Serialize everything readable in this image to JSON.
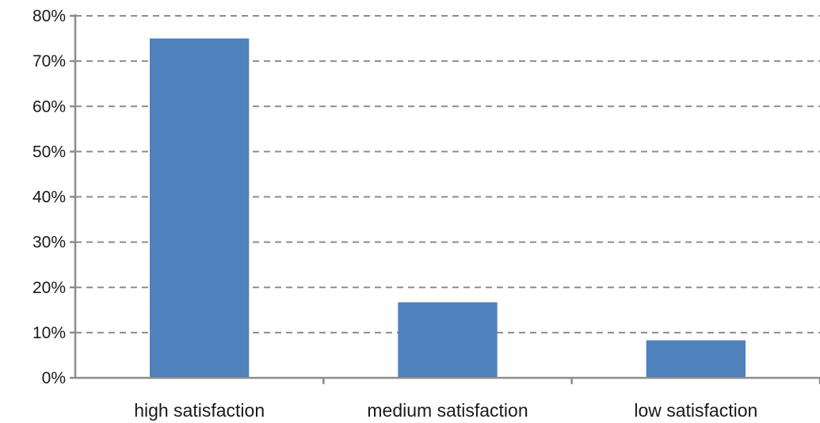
{
  "chart_data": {
    "type": "bar",
    "categories": [
      "high satisfaction",
      "medium satisfaction",
      "low satisfaction"
    ],
    "values": [
      75,
      16.7,
      8.3
    ],
    "value_format": "percent",
    "ylim": [
      0,
      80
    ],
    "y_ticks": [
      0,
      10,
      20,
      30,
      40,
      50,
      60,
      70,
      80
    ],
    "y_tick_labels": [
      "0%",
      "10%",
      "20%",
      "30%",
      "40%",
      "50%",
      "60%",
      "70%",
      "80%"
    ],
    "title": "",
    "xlabel": "",
    "ylabel": "",
    "grid": true,
    "grid_style": "dashed horizontal",
    "legend": false,
    "bar_color": "#4F81BD",
    "axis_color": "#8C8C8C"
  }
}
